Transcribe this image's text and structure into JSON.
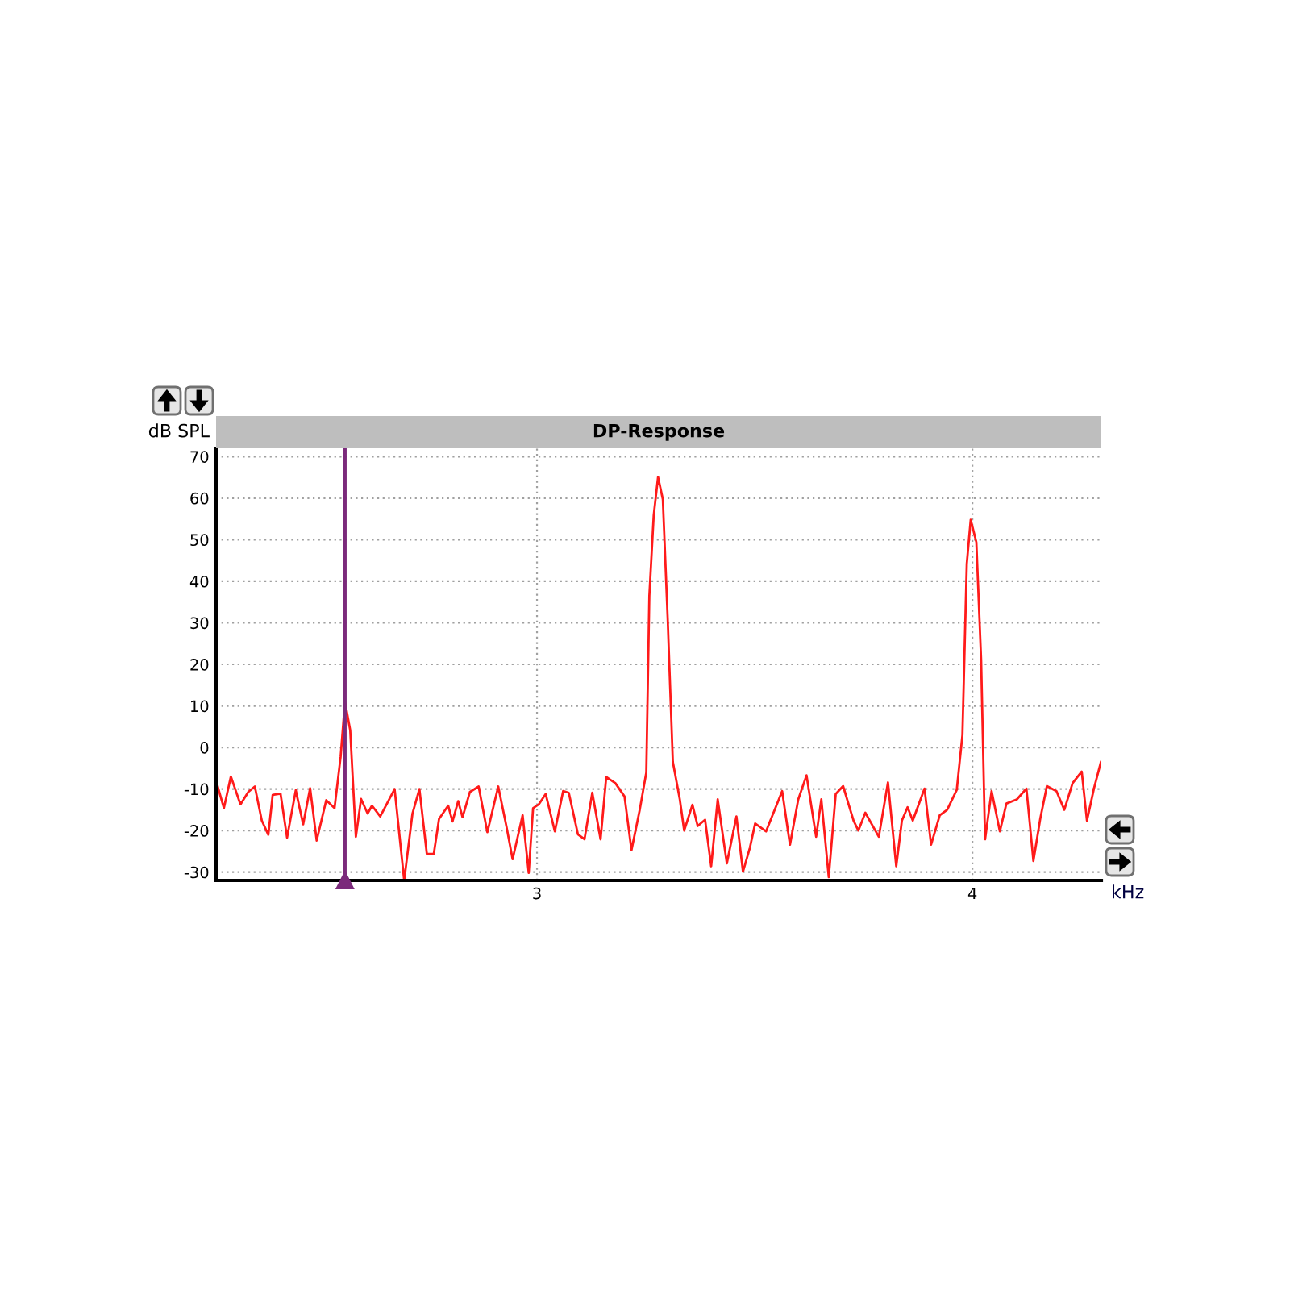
{
  "chart_data": {
    "type": "line",
    "title": "DP-Response",
    "xlabel": "kHz",
    "ylabel": "dB SPL",
    "xlim": [
      2.263,
      4.296
    ],
    "ylim": [
      -32,
      72
    ],
    "xticks": [
      3,
      4
    ],
    "yticks": [
      -30,
      -20,
      -10,
      0,
      10,
      20,
      30,
      40,
      50,
      60,
      70
    ],
    "grid": true,
    "marker": "none",
    "line_style": "solid",
    "ref_lines": [
      {
        "axis": "x",
        "value": 2.559,
        "color": "#7b2a7b"
      }
    ],
    "series": [
      {
        "color": "#ff1a1a",
        "x": [
          2.263,
          2.281,
          2.297,
          2.319,
          2.337,
          2.352,
          2.368,
          2.383,
          2.393,
          2.411,
          2.426,
          2.446,
          2.463,
          2.479,
          2.494,
          2.516,
          2.535,
          2.549,
          2.559,
          2.571,
          2.584,
          2.596,
          2.611,
          2.621,
          2.64,
          2.673,
          2.695,
          2.714,
          2.73,
          2.747,
          2.763,
          2.775,
          2.796,
          2.806,
          2.819,
          2.829,
          2.846,
          2.866,
          2.886,
          2.911,
          2.93,
          2.944,
          2.967,
          2.981,
          2.991,
          3.004,
          3.02,
          3.041,
          3.06,
          3.073,
          3.094,
          3.109,
          3.127,
          3.146,
          3.159,
          3.18,
          3.201,
          3.217,
          3.236,
          3.251,
          3.258,
          3.268,
          3.278,
          3.289,
          3.3,
          3.312,
          3.328,
          3.338,
          3.357,
          3.369,
          3.386,
          3.4,
          3.415,
          3.436,
          3.458,
          3.473,
          3.489,
          3.501,
          3.526,
          3.563,
          3.581,
          3.6,
          3.619,
          3.641,
          3.653,
          3.67,
          3.686,
          3.703,
          3.727,
          3.738,
          3.754,
          3.785,
          3.806,
          3.825,
          3.838,
          3.851,
          3.863,
          3.89,
          3.905,
          3.925,
          3.942,
          3.964,
          3.977,
          3.987,
          3.996,
          4.009,
          4.02,
          4.029,
          4.044,
          4.063,
          4.078,
          4.102,
          4.124,
          4.14,
          4.156,
          4.171,
          4.193,
          4.211,
          4.23,
          4.251,
          4.263,
          4.279,
          4.295
        ],
        "values": [
          -8,
          -14.6,
          -7,
          -13.7,
          -10.7,
          -9.4,
          -17.6,
          -21,
          -11.4,
          -11.1,
          -21.7,
          -10.3,
          -18.5,
          -9.8,
          -22.4,
          -12.7,
          -14.6,
          -2.3,
          11,
          4.2,
          -21.5,
          -12.4,
          -15.9,
          -14,
          -16.6,
          -10,
          -32,
          -15.9,
          -10,
          -25.6,
          -25.6,
          -17.2,
          -14,
          -17.8,
          -12.9,
          -16.8,
          -10.7,
          -9.4,
          -20.4,
          -9.4,
          -19.1,
          -26.9,
          -16.3,
          -30.2,
          -14.6,
          -13.7,
          -11.2,
          -20.2,
          -10.5,
          -10.9,
          -20.9,
          -22.1,
          -10.9,
          -22.1,
          -7.1,
          -8.6,
          -11.8,
          -24.7,
          -15,
          -6,
          36.5,
          55.8,
          65.1,
          59.7,
          31.3,
          -3.5,
          -12.5,
          -20,
          -13.8,
          -18.9,
          -17.4,
          -28.6,
          -12.5,
          -27.9,
          -16.6,
          -29.9,
          -24.1,
          -18.3,
          -20.2,
          -10.5,
          -23.4,
          -12.5,
          -6.7,
          -21.5,
          -12.5,
          -31.2,
          -11.2,
          -9.3,
          -17.6,
          -20,
          -15.7,
          -21.5,
          -8.4,
          -28.6,
          -17.6,
          -14.4,
          -17.6,
          -9.9,
          -23.4,
          -16.3,
          -15,
          -10.2,
          3,
          44.2,
          54.8,
          49.4,
          21,
          -22.1,
          -10.5,
          -20.2,
          -13.5,
          -12.5,
          -9.9,
          -27.3,
          -17,
          -9.3,
          -10.5,
          -15,
          -8.6,
          -5.8,
          -17.6,
          -9.9,
          -3.5
        ]
      }
    ]
  }
}
